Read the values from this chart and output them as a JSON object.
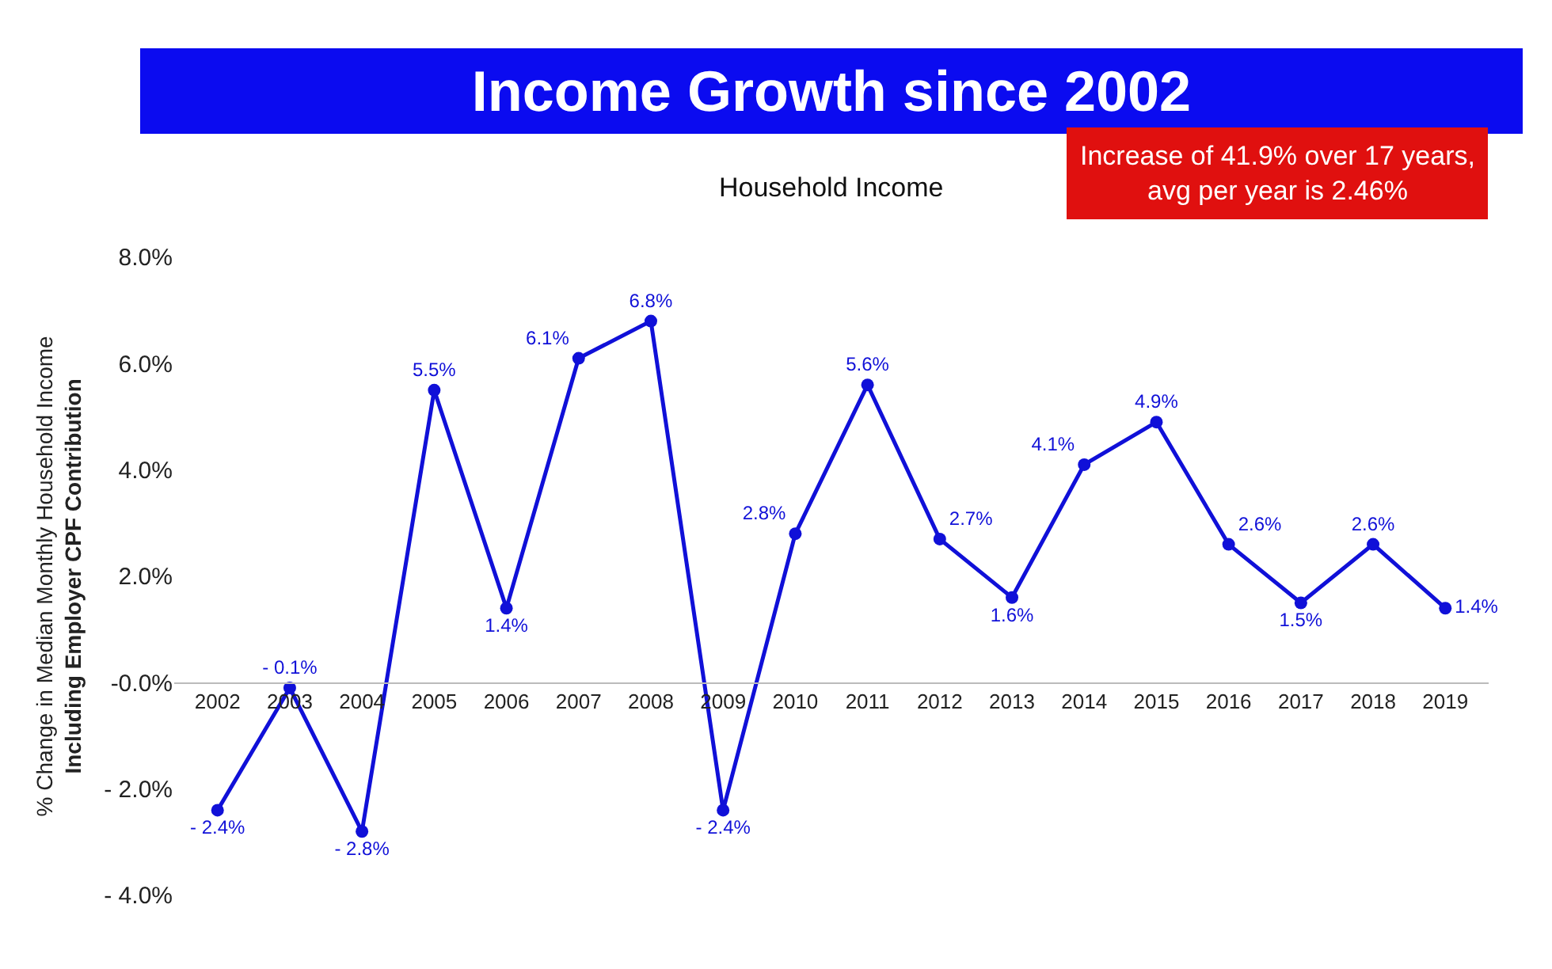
{
  "chart_data": {
    "type": "line",
    "title": "Income Growth since 2002",
    "subtitle": "Household Income",
    "ylabel": "% Change in Median Monthly Household Income\nIncluding Employer CPF Contribution",
    "annotations": [
      "Increase of 41.9% over 17 years, avg per year is 2.46%"
    ],
    "categories": [
      "2002",
      "2003",
      "2004",
      "2005",
      "2006",
      "2007",
      "2008",
      "2009",
      "2010",
      "2011",
      "2012",
      "2013",
      "2014",
      "2015",
      "2016",
      "2017",
      "2018",
      "2019"
    ],
    "series": [
      {
        "color": "#1010d8",
        "values": [
          -2.4,
          -0.1,
          -2.8,
          5.5,
          1.4,
          6.1,
          6.8,
          -2.4,
          2.8,
          5.6,
          2.7,
          1.6,
          4.1,
          4.9,
          2.6,
          1.5,
          2.6,
          1.4
        ],
        "value_labels": [
          "- 2.4%",
          "- 0.1%",
          "- 2.8%",
          "5.5%",
          "1.4%",
          "6.1%",
          "6.8%",
          "- 2.4%",
          "2.8%",
          "5.6%",
          "2.7%",
          "1.6%",
          "4.1%",
          "4.9%",
          "2.6%",
          "1.5%",
          "2.6%",
          "1.4%"
        ]
      }
    ],
    "ylim": [
      -4,
      8
    ],
    "yticks": [
      {
        "value": -4,
        "label": "- 4.0%"
      },
      {
        "value": -2,
        "label": "- 2.0%"
      },
      {
        "value": 0,
        "label": "-0.0%"
      },
      {
        "value": 2,
        "label": "2.0%"
      },
      {
        "value": 4,
        "label": "4.0%"
      },
      {
        "value": 6,
        "label": "6.0%"
      },
      {
        "value": 8,
        "label": "8.0%"
      }
    ],
    "marker": "circle",
    "line_style": "solid"
  }
}
